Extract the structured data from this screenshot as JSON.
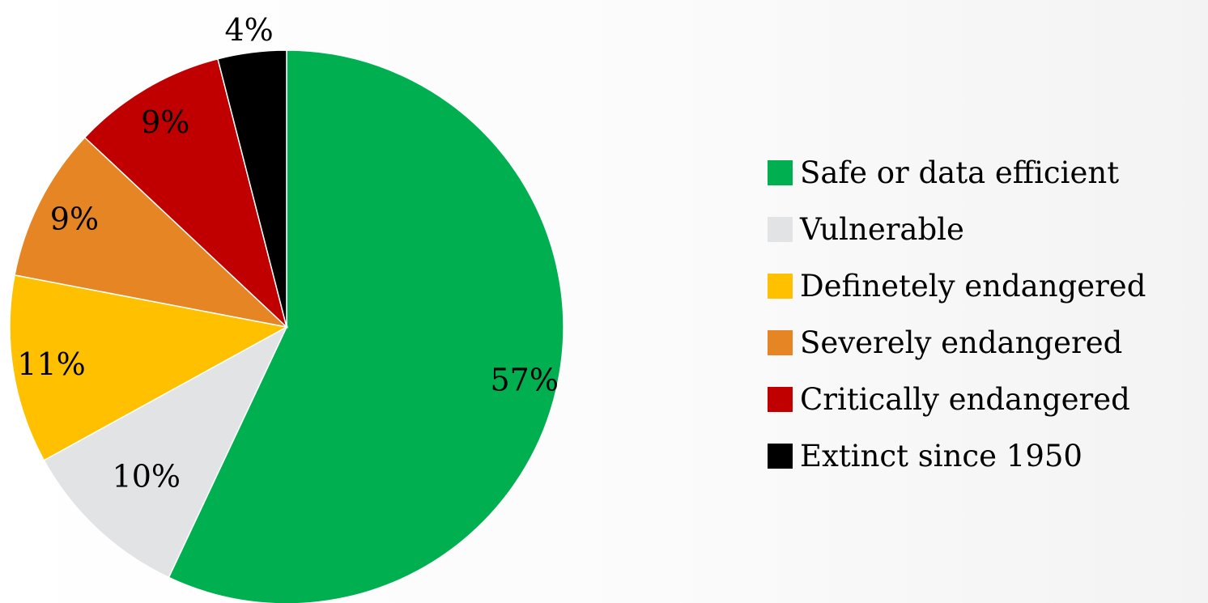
{
  "chart_data": {
    "type": "pie",
    "title": "",
    "start_angle_deg": 0,
    "direction": "clockwise",
    "legend_position": "right",
    "slices": [
      {
        "label": "Safe or data efficient",
        "value": 57,
        "value_label": "57%",
        "color": "#00B050"
      },
      {
        "label": "Vulnerable",
        "value": 10,
        "value_label": "10%",
        "color": "#E1E3E5"
      },
      {
        "label": "Definetely endangered",
        "value": 11,
        "value_label": "11%",
        "color": "#FFC000"
      },
      {
        "label": "Severely endangered",
        "value": 9,
        "value_label": "9%",
        "color": "#E58524"
      },
      {
        "label": "Critically endangered",
        "value": 9,
        "value_label": "9%",
        "color": "#C00000"
      },
      {
        "label": "Extinct since 1950",
        "value": 4,
        "value_label": "4%",
        "color": "#000000"
      }
    ]
  }
}
